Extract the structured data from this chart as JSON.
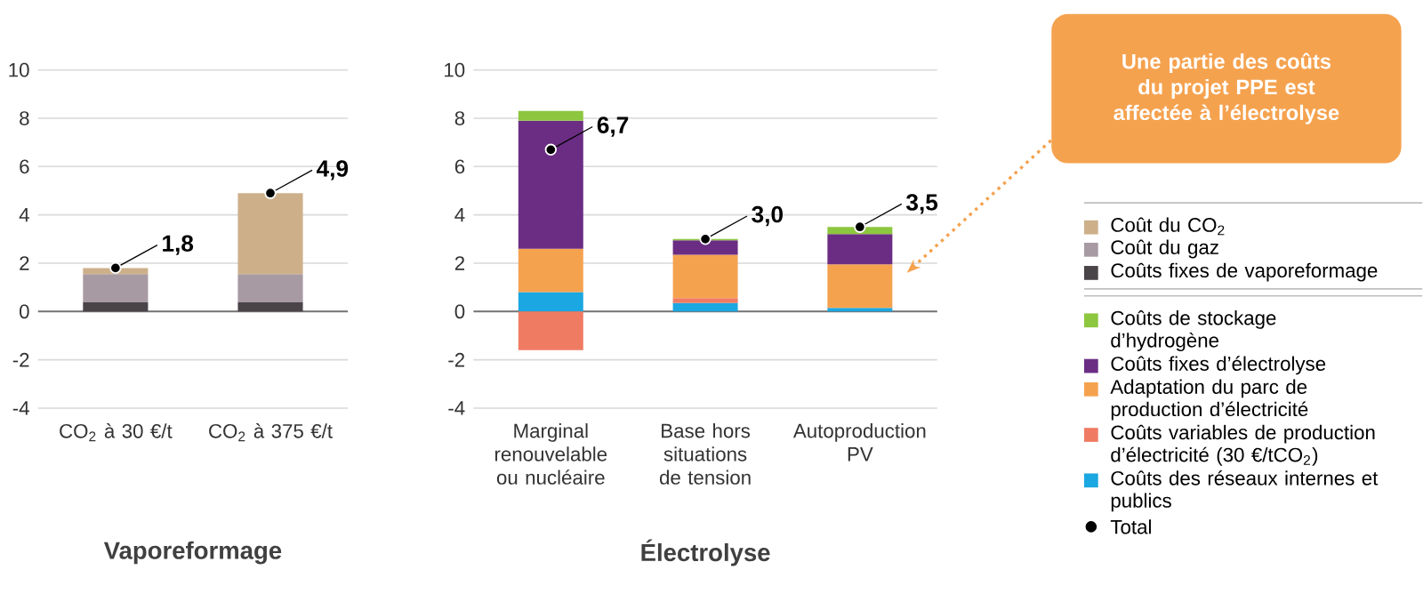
{
  "chart_data": [
    {
      "type": "bar",
      "stacked": true,
      "xlabel": "Vaporeformage",
      "categories": [
        "CO$_{2}$ à 30 €/t",
        "CO$_{2}$ à 375 €/t"
      ],
      "ylim": [
        -4,
        10
      ],
      "yticks": [
        -4,
        -2,
        0,
        2,
        4,
        6,
        8,
        10
      ],
      "grid": "y",
      "legend": "right",
      "series": [
        {
          "name": "Coûts fixes de vaporeformage",
          "color": "#4a4449",
          "values": [
            0.4,
            0.4
          ]
        },
        {
          "name": "Coût du gaz",
          "color": "#a89aa3",
          "values": [
            1.15,
            1.15
          ]
        },
        {
          "name": "Coût du CO$_{2}$",
          "color": "#cdb08a",
          "values": [
            0.25,
            3.35
          ]
        },
        {
          "type": "scatter",
          "color": "#000000",
          "marker": "circle",
          "values": [
            1.8,
            4.9
          ],
          "value_labels": [
            "1,8",
            "4,9"
          ]
        }
      ]
    },
    {
      "type": "bar",
      "stacked": true,
      "xlabel": "Électrolyse",
      "categories": [
        "Marginal renouvelable ou nucléaire",
        "Base hors situations de tension",
        "Autoproduction PV"
      ],
      "ylim": [
        -4,
        10
      ],
      "yticks": [
        -4,
        -2,
        0,
        2,
        4,
        6,
        8,
        10
      ],
      "grid": "y",
      "legend": "right",
      "annotations": [
        "Une partie des coûts du projet PPE est affectée à l’électrolyse"
      ],
      "series": [
        {
          "name": "Coûts des réseaux internes et publics",
          "color": "#1ba7e1",
          "values": [
            0.8,
            0.35,
            0.15
          ]
        },
        {
          "name": "Coûts variables de production d’électricité (30 €/tCO$_{2}$)",
          "color": "#f07b63",
          "values": [
            -1.6,
            0.2,
            0
          ]
        },
        {
          "name": "Adaptation du parc de production d’électricité",
          "color": "#f5a24f",
          "values": [
            1.8,
            1.8,
            1.8
          ]
        },
        {
          "name": "Coûts fixes d’électrolyse",
          "color": "#6b2d84",
          "values": [
            5.3,
            0.6,
            1.25
          ]
        },
        {
          "name": "Coûts de stockage d’hydrogène",
          "color": "#8dc63f",
          "values": [
            0.4,
            0.05,
            0.3
          ]
        },
        {
          "name": "Total",
          "type": "scatter",
          "color": "#000000",
          "marker": "circle",
          "values": [
            6.7,
            3.0,
            3.5
          ],
          "value_labels": [
            "6,7",
            "3,0",
            "3,5"
          ]
        }
      ]
    }
  ]
}
